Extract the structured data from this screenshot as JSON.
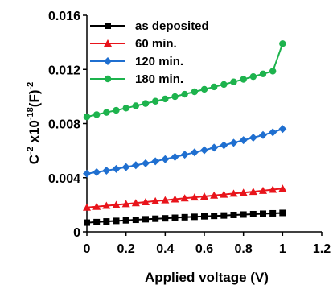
{
  "chart_data": {
    "type": "line",
    "title": "",
    "xlabel": "Applied voltage (V)",
    "ylabel": {
      "base": "C",
      "sup1": "-2",
      "mid": " x10",
      "sup2": "-18",
      "end": "(F)",
      "sup3": "-2"
    },
    "xlim": [
      0,
      1.2
    ],
    "ylim": [
      0,
      0.016
    ],
    "xticks": [
      0,
      0.2,
      0.4,
      0.6,
      0.8,
      1,
      1.2
    ],
    "xtick_labels": [
      "0",
      "0.2",
      "0.4",
      "0.6",
      "0.8",
      "1",
      "1.2"
    ],
    "yticks": [
      0,
      0.004,
      0.008,
      0.012,
      0.016
    ],
    "ytick_labels": [
      "0",
      "0.004",
      "0.008",
      "0.012",
      "0.016"
    ],
    "grid": false,
    "legend": "top-left",
    "series": [
      {
        "name": "as deposited",
        "color": "#000000",
        "marker": "square",
        "x": [
          0,
          0.05,
          0.1,
          0.15,
          0.2,
          0.25,
          0.3,
          0.35,
          0.4,
          0.45,
          0.5,
          0.55,
          0.6,
          0.65,
          0.7,
          0.75,
          0.8,
          0.85,
          0.9,
          0.95,
          1.0
        ],
        "y": [
          0.00068,
          0.00072,
          0.00077,
          0.00081,
          0.00085,
          0.00089,
          0.00093,
          0.00097,
          0.001,
          0.00104,
          0.00108,
          0.00111,
          0.00115,
          0.00118,
          0.00121,
          0.00125,
          0.00128,
          0.00131,
          0.00134,
          0.00137,
          0.0014
        ]
      },
      {
        "name": "60 min.",
        "color": "#e8141b",
        "marker": "triangle",
        "x": [
          0,
          0.05,
          0.1,
          0.15,
          0.2,
          0.25,
          0.3,
          0.35,
          0.4,
          0.45,
          0.5,
          0.55,
          0.6,
          0.65,
          0.7,
          0.75,
          0.8,
          0.85,
          0.9,
          0.95,
          1.0
        ],
        "y": [
          0.0018,
          0.00186,
          0.00193,
          0.00199,
          0.00206,
          0.00213,
          0.0022,
          0.00227,
          0.00234,
          0.00241,
          0.00248,
          0.00255,
          0.00262,
          0.00269,
          0.00276,
          0.00283,
          0.0029,
          0.00297,
          0.00304,
          0.00312,
          0.0032
        ]
      },
      {
        "name": "120 min.",
        "color": "#1f6fd0",
        "marker": "diamond",
        "x": [
          0,
          0.05,
          0.1,
          0.15,
          0.2,
          0.25,
          0.3,
          0.35,
          0.4,
          0.45,
          0.5,
          0.55,
          0.6,
          0.65,
          0.7,
          0.75,
          0.8,
          0.85,
          0.9,
          0.95,
          1.0
        ],
        "y": [
          0.0043,
          0.00441,
          0.00452,
          0.00465,
          0.00478,
          0.00492,
          0.00506,
          0.00521,
          0.00537,
          0.00553,
          0.0057,
          0.00587,
          0.00604,
          0.00622,
          0.0064,
          0.00658,
          0.00677,
          0.00696,
          0.00715,
          0.00735,
          0.0076
        ]
      },
      {
        "name": "180 min.",
        "color": "#1db34d",
        "marker": "circle",
        "x": [
          0,
          0.05,
          0.1,
          0.15,
          0.2,
          0.25,
          0.3,
          0.35,
          0.4,
          0.45,
          0.5,
          0.55,
          0.6,
          0.65,
          0.7,
          0.75,
          0.8,
          0.85,
          0.9,
          0.95,
          1.0
        ],
        "y": [
          0.0085,
          0.00866,
          0.00882,
          0.00898,
          0.00914,
          0.00931,
          0.00948,
          0.00965,
          0.00982,
          0.00999,
          0.01017,
          0.01035,
          0.01053,
          0.01071,
          0.01089,
          0.01108,
          0.01127,
          0.01147,
          0.01167,
          0.01187,
          0.0139
        ]
      }
    ]
  }
}
